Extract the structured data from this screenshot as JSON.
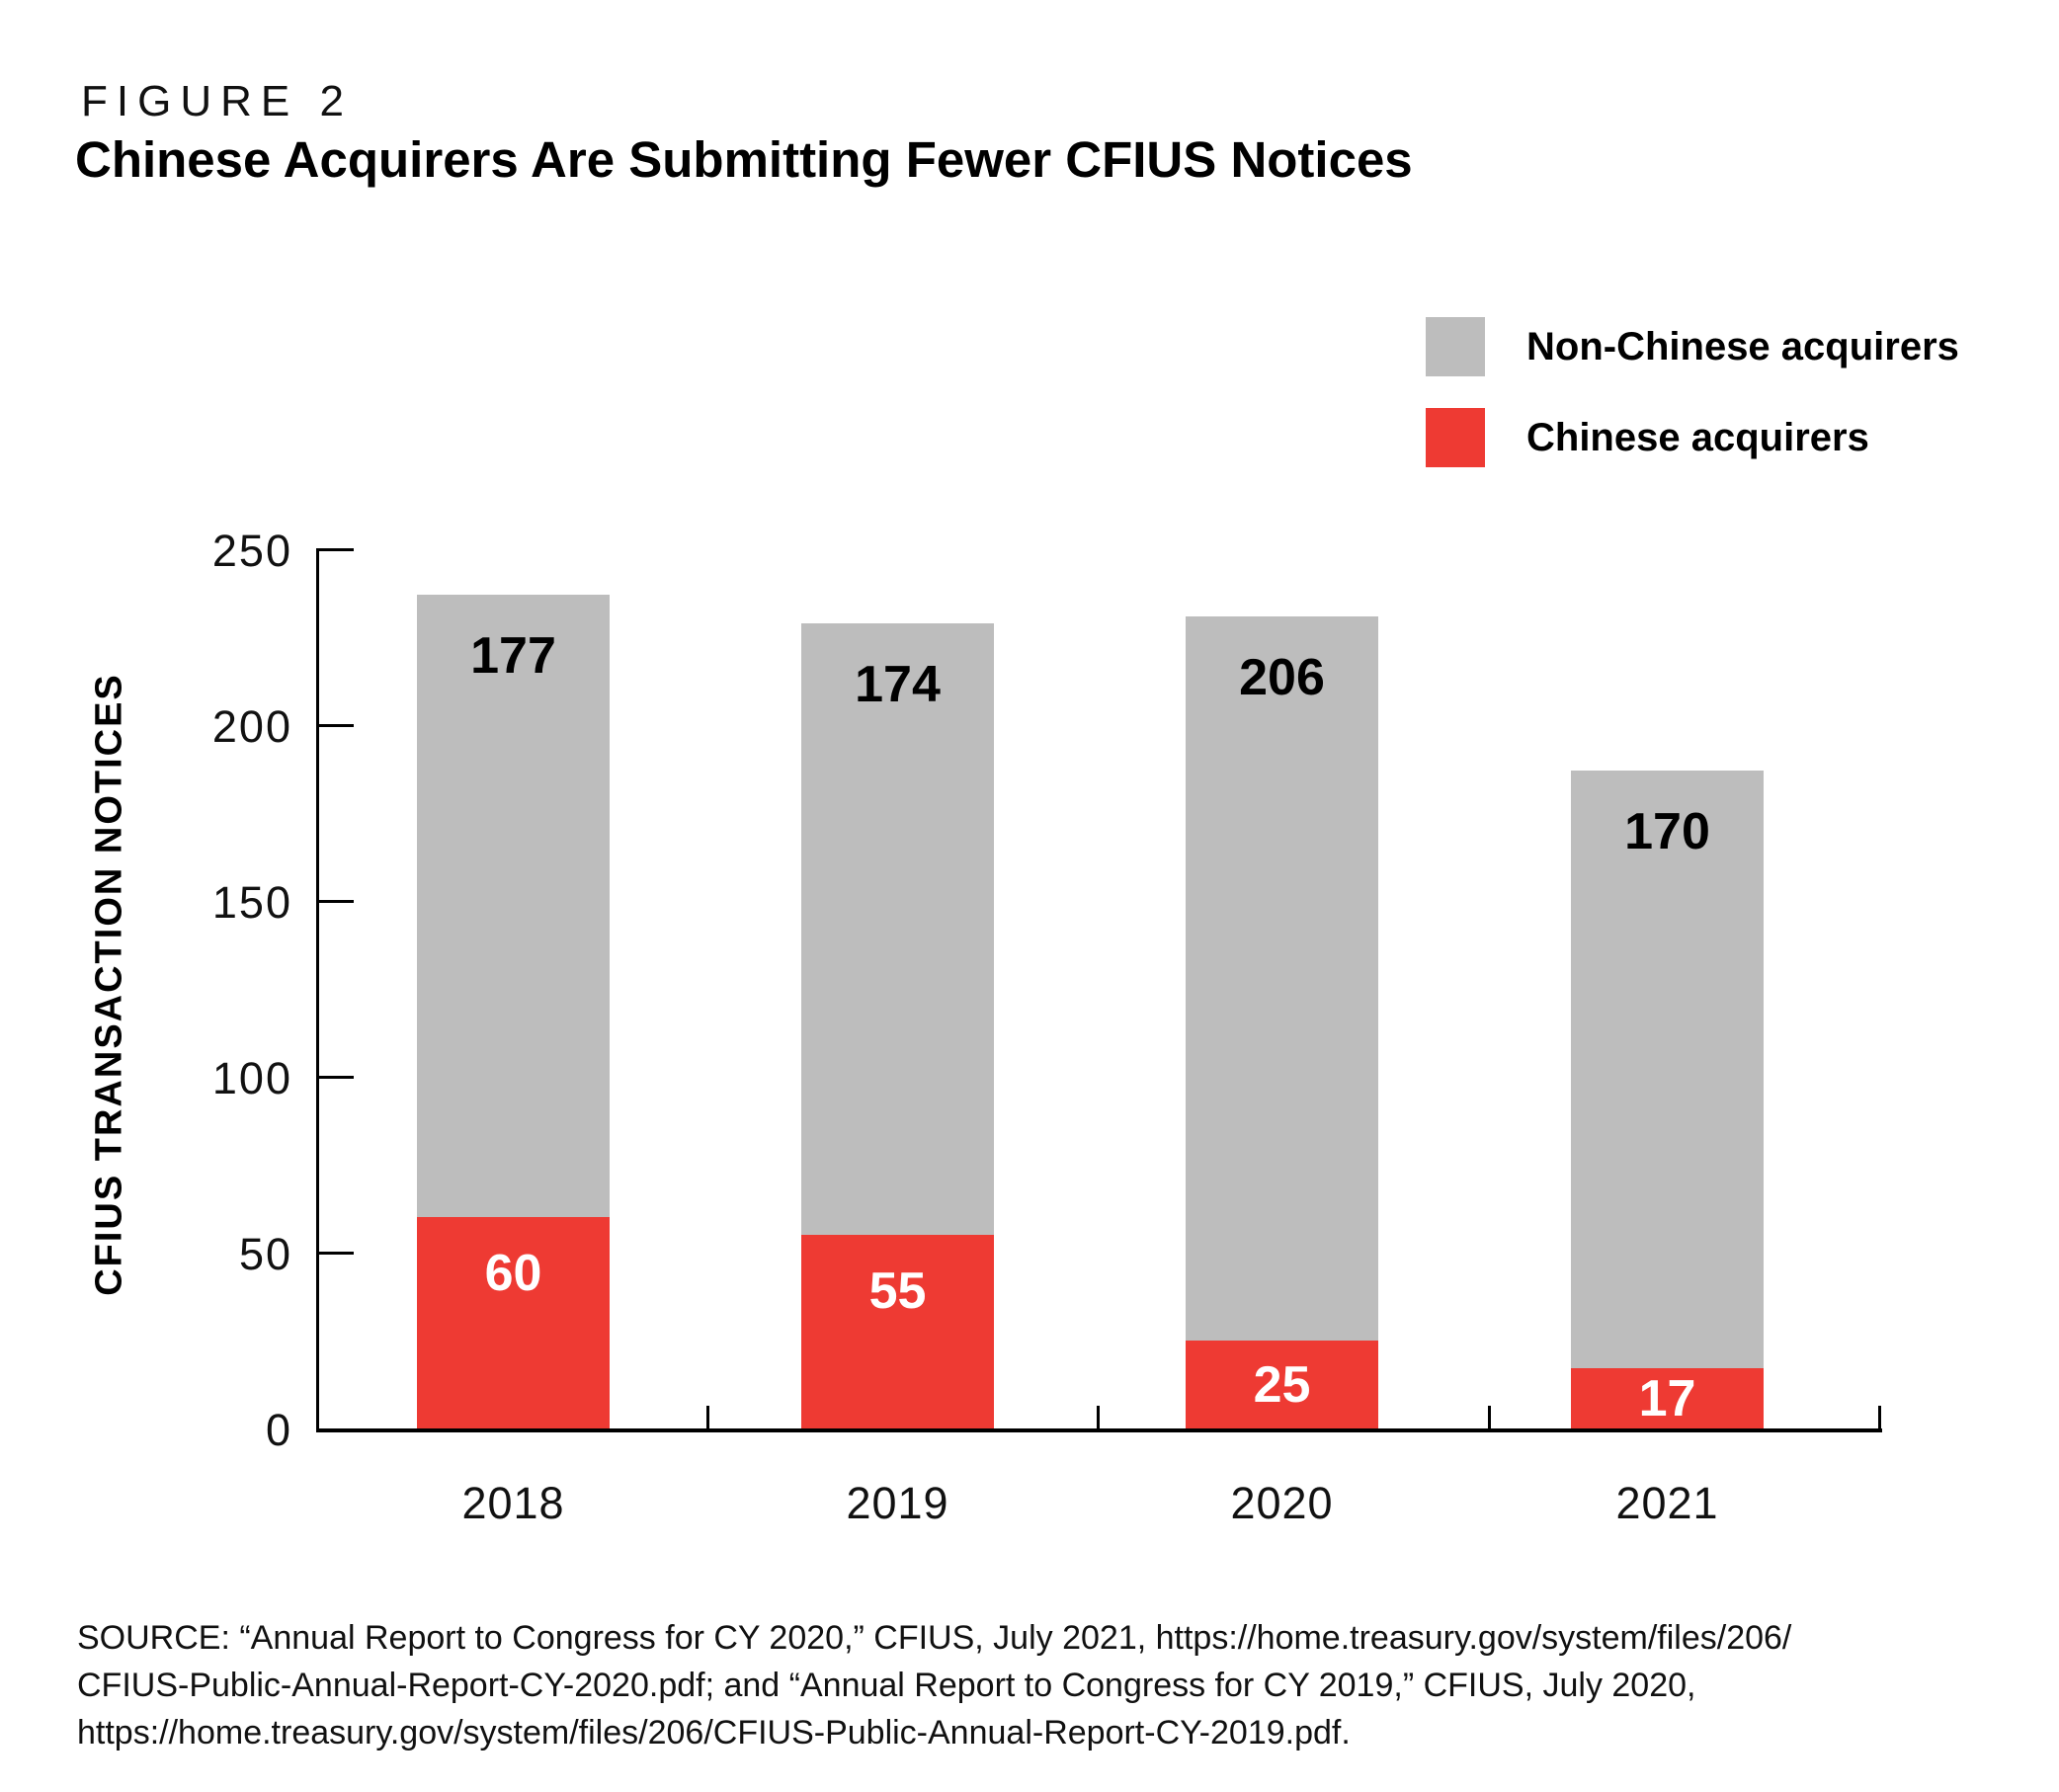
{
  "figure_label": "FIGURE 2",
  "title": "Chinese Acquirers Are Submitting Fewer CFIUS Notices",
  "legend": [
    {
      "label": "Non-Chinese acquirers",
      "color": "#bdbdbd"
    },
    {
      "label": "Chinese acquirers",
      "color": "#ee3a33"
    }
  ],
  "chart_data": {
    "type": "bar",
    "stacked": true,
    "title": "Chinese Acquirers Are Submitting Fewer CFIUS Notices",
    "categories": [
      "2018",
      "2019",
      "2020",
      "2021"
    ],
    "series": [
      {
        "name": "Chinese acquirers",
        "color": "#ee3a33",
        "label_color": "#ffffff",
        "values": [
          60,
          55,
          25,
          17
        ]
      },
      {
        "name": "Non-Chinese acquirers",
        "color": "#bdbdbd",
        "label_color": "#000000",
        "values": [
          177,
          174,
          206,
          170
        ]
      }
    ],
    "totals": [
      237,
      229,
      231,
      187
    ],
    "xlabel": "",
    "ylabel": "CFIUS TRANSACTION NOTICES",
    "ylim": [
      0,
      250
    ],
    "yticks": [
      0,
      50,
      100,
      150,
      200,
      250
    ],
    "grid": false,
    "legend_position": "top-right",
    "tick_direction": "inward"
  },
  "source_text": "SOURCE: “Annual Report to Congress for CY 2020,” CFIUS, July 2021, https://home.treasury.gov/system/files/206/\nCFIUS-Public-Annual-Report-CY-2020.pdf; and “Annual Report to Congress for CY 2019,” CFIUS, July 2020,\nhttps://home.treasury.gov/system/files/206/CFIUS-Public-Annual-Report-CY-2019.pdf."
}
